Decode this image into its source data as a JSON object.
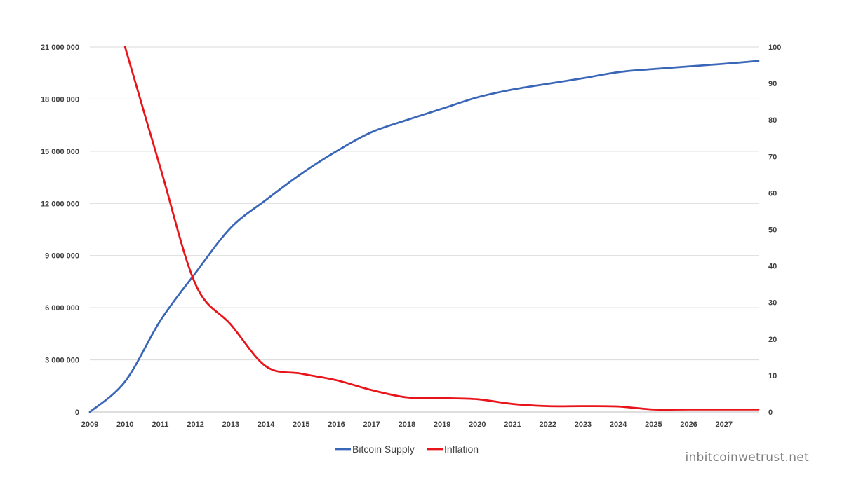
{
  "chart_data": {
    "type": "line",
    "x": [
      2009,
      2010,
      2011,
      2012,
      2013,
      2014,
      2015,
      2016,
      2017,
      2018,
      2019,
      2020,
      2021,
      2022,
      2023,
      2024,
      2025,
      2026,
      2027,
      2028
    ],
    "series": [
      {
        "name": "Bitcoin Supply",
        "axis": "left",
        "color": "#3a66b8",
        "values": [
          0,
          1750000,
          5250000,
          8000000,
          10600000,
          12200000,
          13700000,
          15000000,
          16100000,
          16800000,
          17450000,
          18100000,
          18550000,
          18880000,
          19200000,
          19550000,
          19730000,
          19880000,
          20030000,
          20200000
        ]
      },
      {
        "name": "Inflation",
        "axis": "right",
        "color": "#e8141a",
        "values": [
          null,
          100,
          67,
          35,
          24,
          12.5,
          10.5,
          8.7,
          6,
          4,
          3.8,
          3.5,
          2.2,
          1.6,
          1.6,
          1.5,
          0.7,
          0.7,
          0.7,
          0.7
        ]
      }
    ],
    "x_ticks": [
      "2009",
      "2010",
      "2011",
      "2012",
      "2013",
      "2014",
      "2015",
      "2016",
      "2017",
      "2018",
      "2019",
      "2020",
      "2021",
      "2022",
      "2023",
      "2024",
      "2025",
      "2026",
      "2027"
    ],
    "y_left_ticks": [
      {
        "value": 0,
        "label": "0"
      },
      {
        "value": 3000000,
        "label": "3 000 000"
      },
      {
        "value": 6000000,
        "label": "6 000 000"
      },
      {
        "value": 9000000,
        "label": "9 000 000"
      },
      {
        "value": 12000000,
        "label": "12 000 000"
      },
      {
        "value": 15000000,
        "label": "15 000 000"
      },
      {
        "value": 18000000,
        "label": "18 000 000"
      },
      {
        "value": 21000000,
        "label": "21 000 000"
      }
    ],
    "y_right_ticks": [
      {
        "value": 0,
        "label": "0"
      },
      {
        "value": 10,
        "label": "10"
      },
      {
        "value": 20,
        "label": "20"
      },
      {
        "value": 30,
        "label": "30"
      },
      {
        "value": 40,
        "label": "40"
      },
      {
        "value": 50,
        "label": "50"
      },
      {
        "value": 60,
        "label": "60"
      },
      {
        "value": 70,
        "label": "70"
      },
      {
        "value": 80,
        "label": "80"
      },
      {
        "value": 90,
        "label": "90"
      },
      {
        "value": 100,
        "label": "100"
      }
    ],
    "ylim_left": [
      0,
      21000000
    ],
    "ylim_right": [
      0,
      100
    ],
    "xlim": [
      2009,
      2028
    ],
    "grid": true,
    "legend_position": "bottom-center",
    "legend": [
      "Bitcoin Supply",
      "Inflation"
    ]
  },
  "watermark": "inbitcoinwetrust.net"
}
